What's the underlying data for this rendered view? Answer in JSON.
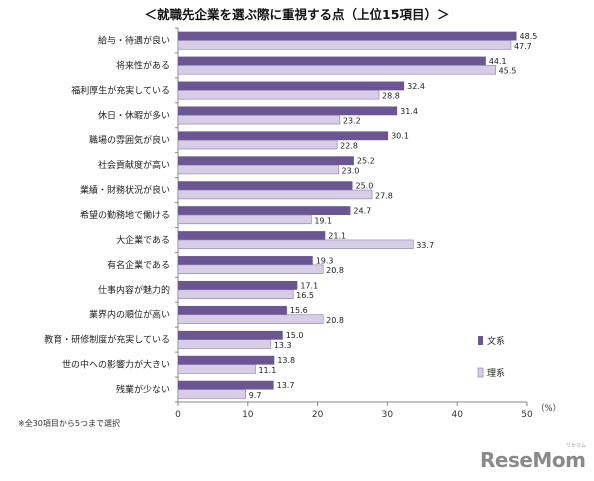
{
  "title": "＜就職先企業を選ぶ際に重視する点（上位15項目）＞",
  "footnote": "※全30項目から5つまで選択",
  "unit_label": "（%）",
  "logo": "ReseMom",
  "logo_sub": "リセマム",
  "colors": {
    "bunkei": "#6b5693",
    "rikei": "#d8cde6",
    "rikei_border": "#8c7bab",
    "axis": "#888888"
  },
  "chart_data": {
    "type": "bar",
    "orientation": "horizontal",
    "title": "＜就職先企業を選ぶ際に重視する点（上位15項目）＞",
    "categories": [
      "給与・待遇が良い",
      "将来性がある",
      "福利厚生が充実している",
      "休日・休暇が多い",
      "職場の雰囲気が良い",
      "社会貢献度が高い",
      "業績・財務状況が良い",
      "希望の勤務地で働ける",
      "大企業である",
      "有名企業である",
      "仕事内容が魅力的",
      "業界内の順位が高い",
      "教育・研修制度が充実している",
      "世の中への影響力が大きい",
      "残業が少ない"
    ],
    "series": [
      {
        "name": "文系",
        "values": [
          48.5,
          44.1,
          32.4,
          31.4,
          30.1,
          25.2,
          25.0,
          24.7,
          21.1,
          19.3,
          17.1,
          15.6,
          15.0,
          13.8,
          13.7
        ]
      },
      {
        "name": "理系",
        "values": [
          47.7,
          45.5,
          28.8,
          23.2,
          22.8,
          23.0,
          27.8,
          19.1,
          33.7,
          20.8,
          16.5,
          20.8,
          13.3,
          11.1,
          9.7
        ]
      }
    ],
    "xlim": [
      0,
      50
    ],
    "xticks": [
      "0",
      "10",
      "20",
      "30",
      "40",
      "50"
    ],
    "xlabel": "（%）",
    "legend_position": "right"
  }
}
